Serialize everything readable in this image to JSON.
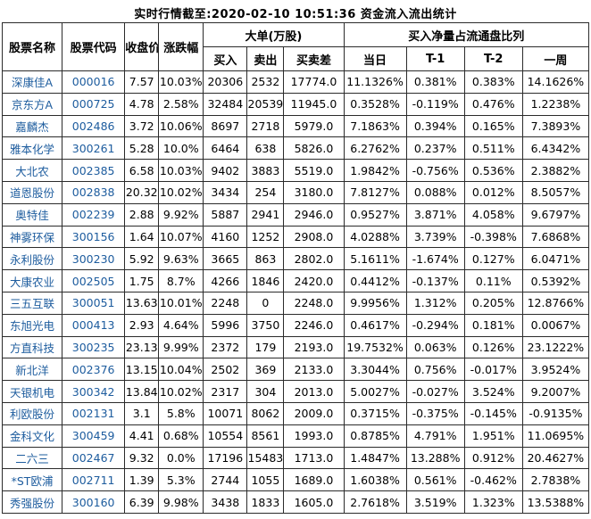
{
  "title": "实时行情截至:2020-02-10 10:51:36 资金流入流出统计",
  "colors": {
    "link_blue": "#1d5c9e",
    "text": "#000000",
    "border": "#2b2b2b",
    "background": "#ffffff"
  },
  "header": {
    "stock_name": "股票名称",
    "stock_code": "股票代码",
    "close_price": "收盘价",
    "change_pct": "涨跌幅",
    "big_orders_group": "大单(万股)",
    "net_buy_ratio_group": "买入净量占流通盘比列",
    "buy": "买入",
    "sell": "卖出",
    "buy_sell_diff": "买卖差",
    "day": "当日",
    "t1": "T-1",
    "t2": "T-2",
    "week": "一周"
  },
  "chart_data": {
    "type": "table",
    "title": "实时行情截至:2020-02-10 10:51:36 资金流入流出统计",
    "column_groups": [
      "大单(万股)",
      "买入净量占流通盘比列"
    ],
    "columns": [
      "股票名称",
      "股票代码",
      "收盘价",
      "涨跌幅",
      "买入",
      "卖出",
      "买卖差",
      "当日",
      "T-1",
      "T-2",
      "一周"
    ],
    "rows": [
      [
        "深康佳A",
        "000016",
        "7.57",
        "10.03%",
        "20306",
        "2532",
        "17774.0",
        "11.1326%",
        "0.381%",
        "0.383%",
        "14.1626%"
      ],
      [
        "京东方A",
        "000725",
        "4.78",
        "2.58%",
        "32484",
        "20539",
        "11945.0",
        "0.3528%",
        "-0.119%",
        "0.476%",
        "1.2238%"
      ],
      [
        "嘉麟杰",
        "002486",
        "3.72",
        "10.06%",
        "8697",
        "2718",
        "5979.0",
        "7.1863%",
        "0.394%",
        "0.165%",
        "7.3893%"
      ],
      [
        "雅本化学",
        "300261",
        "5.28",
        "10.0%",
        "6464",
        "638",
        "5826.0",
        "6.2762%",
        "0.237%",
        "0.511%",
        "6.4342%"
      ],
      [
        "大北农",
        "002385",
        "6.58",
        "10.03%",
        "9402",
        "3883",
        "5519.0",
        "1.9842%",
        "-0.756%",
        "0.536%",
        "2.3882%"
      ],
      [
        "道恩股份",
        "002838",
        "20.32",
        "10.02%",
        "3434",
        "254",
        "3180.0",
        "7.8127%",
        "0.088%",
        "0.012%",
        "8.5057%"
      ],
      [
        "奥特佳",
        "002239",
        "2.88",
        "9.92%",
        "5887",
        "2941",
        "2946.0",
        "0.9527%",
        "3.871%",
        "4.058%",
        "9.6797%"
      ],
      [
        "神雾环保",
        "300156",
        "1.64",
        "10.07%",
        "4160",
        "1252",
        "2908.0",
        "4.0288%",
        "3.739%",
        "-0.398%",
        "7.6868%"
      ],
      [
        "永利股份",
        "300230",
        "5.92",
        "9.63%",
        "3665",
        "863",
        "2802.0",
        "5.1611%",
        "-1.674%",
        "0.127%",
        "6.0471%"
      ],
      [
        "大康农业",
        "002505",
        "1.75",
        "8.7%",
        "4266",
        "1846",
        "2420.0",
        "0.4412%",
        "-0.137%",
        "0.11%",
        "0.5392%"
      ],
      [
        "三五互联",
        "300051",
        "13.63",
        "10.01%",
        "2248",
        "0",
        "2248.0",
        "9.9956%",
        "1.312%",
        "0.205%",
        "12.8766%"
      ],
      [
        "东旭光电",
        "000413",
        "2.93",
        "4.64%",
        "5996",
        "3750",
        "2246.0",
        "0.4617%",
        "-0.294%",
        "0.181%",
        "0.0067%"
      ],
      [
        "方直科技",
        "300235",
        "23.13",
        "9.99%",
        "2372",
        "179",
        "2193.0",
        "19.7532%",
        "0.063%",
        "0.126%",
        "23.1222%"
      ],
      [
        "新北洋",
        "002376",
        "13.15",
        "10.04%",
        "2502",
        "369",
        "2133.0",
        "3.3044%",
        "0.756%",
        "-0.017%",
        "3.9524%"
      ],
      [
        "天银机电",
        "300342",
        "13.84",
        "10.02%",
        "2317",
        "304",
        "2013.0",
        "5.0027%",
        "-0.027%",
        "3.524%",
        "9.2007%"
      ],
      [
        "利欧股份",
        "002131",
        "3.1",
        "5.8%",
        "10071",
        "8062",
        "2009.0",
        "0.3715%",
        "-0.375%",
        "-0.145%",
        "-0.9135%"
      ],
      [
        "金科文化",
        "300459",
        "4.41",
        "0.68%",
        "10554",
        "8561",
        "1993.0",
        "0.8785%",
        "4.791%",
        "1.951%",
        "11.0695%"
      ],
      [
        "二六三",
        "002467",
        "9.32",
        "0.0%",
        "17196",
        "15483",
        "1713.0",
        "1.4847%",
        "13.288%",
        "0.912%",
        "20.4627%"
      ],
      [
        "*ST欧浦",
        "002711",
        "1.39",
        "5.3%",
        "2744",
        "1055",
        "1689.0",
        "1.6038%",
        "0.561%",
        "-0.462%",
        "2.7838%"
      ],
      [
        "秀强股份",
        "300160",
        "6.39",
        "9.98%",
        "3438",
        "1833",
        "1605.0",
        "2.7618%",
        "3.519%",
        "1.323%",
        "13.5388%"
      ]
    ]
  }
}
